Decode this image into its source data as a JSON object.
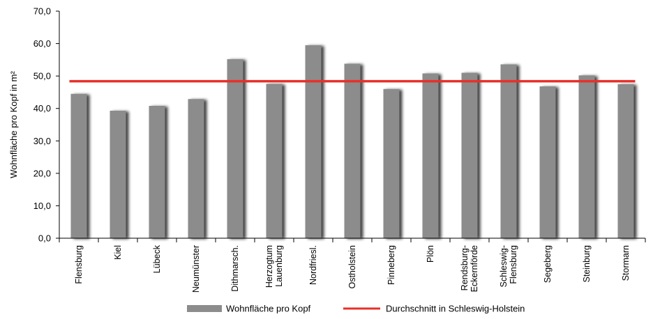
{
  "chart_data": {
    "type": "bar",
    "title": "",
    "xlabel": "",
    "ylabel": "Wohnfläche pro Kopf in m²",
    "ylim": [
      0,
      70
    ],
    "yticks": [
      "0,0",
      "10,0",
      "20,0",
      "30,0",
      "40,0",
      "50,0",
      "60,0",
      "70,0"
    ],
    "grid": false,
    "legend_position": "bottom",
    "categories": [
      [
        "Flensburg"
      ],
      [
        "Kiel"
      ],
      [
        "Lübeck"
      ],
      [
        "Neumünster"
      ],
      [
        "Dithmarsch."
      ],
      [
        "Herzogtum",
        "Lauenburg"
      ],
      [
        "Nordfriesl."
      ],
      [
        "Ostholstein"
      ],
      [
        "Pinneberg"
      ],
      [
        "Plön"
      ],
      [
        "Rendsburg-",
        "Eckernförde"
      ],
      [
        "Schleswig-",
        "Flensburg"
      ],
      [
        "Segeberg"
      ],
      [
        "Steinburg"
      ],
      [
        "Stormarn"
      ]
    ],
    "series": [
      {
        "name": "Wohnfläche pro Kopf",
        "color": "#8c8c8c",
        "values": [
          44.5,
          39.3,
          40.8,
          42.9,
          55.2,
          47.6,
          59.5,
          53.8,
          46.0,
          50.8,
          51.0,
          53.6,
          46.8,
          50.2,
          47.5
        ]
      }
    ],
    "reference_line": {
      "name": "Durchschnitt in Schleswig-Holstein",
      "value": 48.4,
      "color": "#e8302a"
    }
  }
}
